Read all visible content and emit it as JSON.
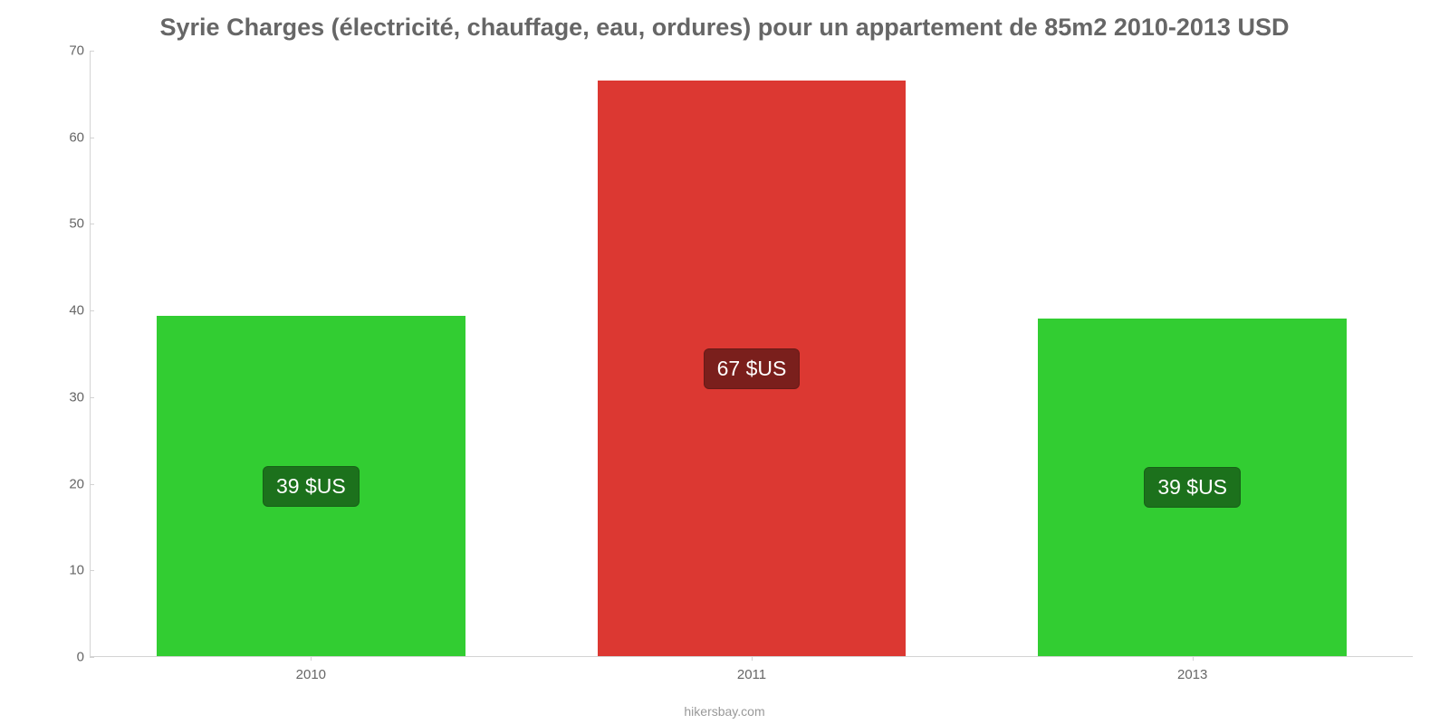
{
  "chart": {
    "type": "bar",
    "title": "Syrie Charges (électricité, chauffage, eau, ordures) pour un appartement de 85m2 2010-2013 USD",
    "title_fontsize": 27,
    "title_color": "#666666",
    "source": "hikersbay.com",
    "source_color": "#999999",
    "background_color": "#ffffff",
    "axis_color": "#d3d3d3",
    "tick_label_color": "#666666",
    "tick_label_fontsize": 15,
    "ylim": [
      0,
      70
    ],
    "ytick_step": 10,
    "yticks": [
      0,
      10,
      20,
      30,
      40,
      50,
      60,
      70
    ],
    "bar_width_pct": 70,
    "value_label_fontsize": 23,
    "categories": [
      "2010",
      "2011",
      "2013"
    ],
    "values": [
      39.3,
      66.5,
      39.0
    ],
    "value_labels": [
      "39 $US",
      "67 $US",
      "39 $US"
    ],
    "bar_colors": [
      "#32cd32",
      "#dc3832",
      "#32cd32"
    ],
    "label_bg_colors": [
      "#1c711c",
      "#7a1f1c",
      "#1c711c"
    ],
    "label_text_color": "#ffffff"
  }
}
